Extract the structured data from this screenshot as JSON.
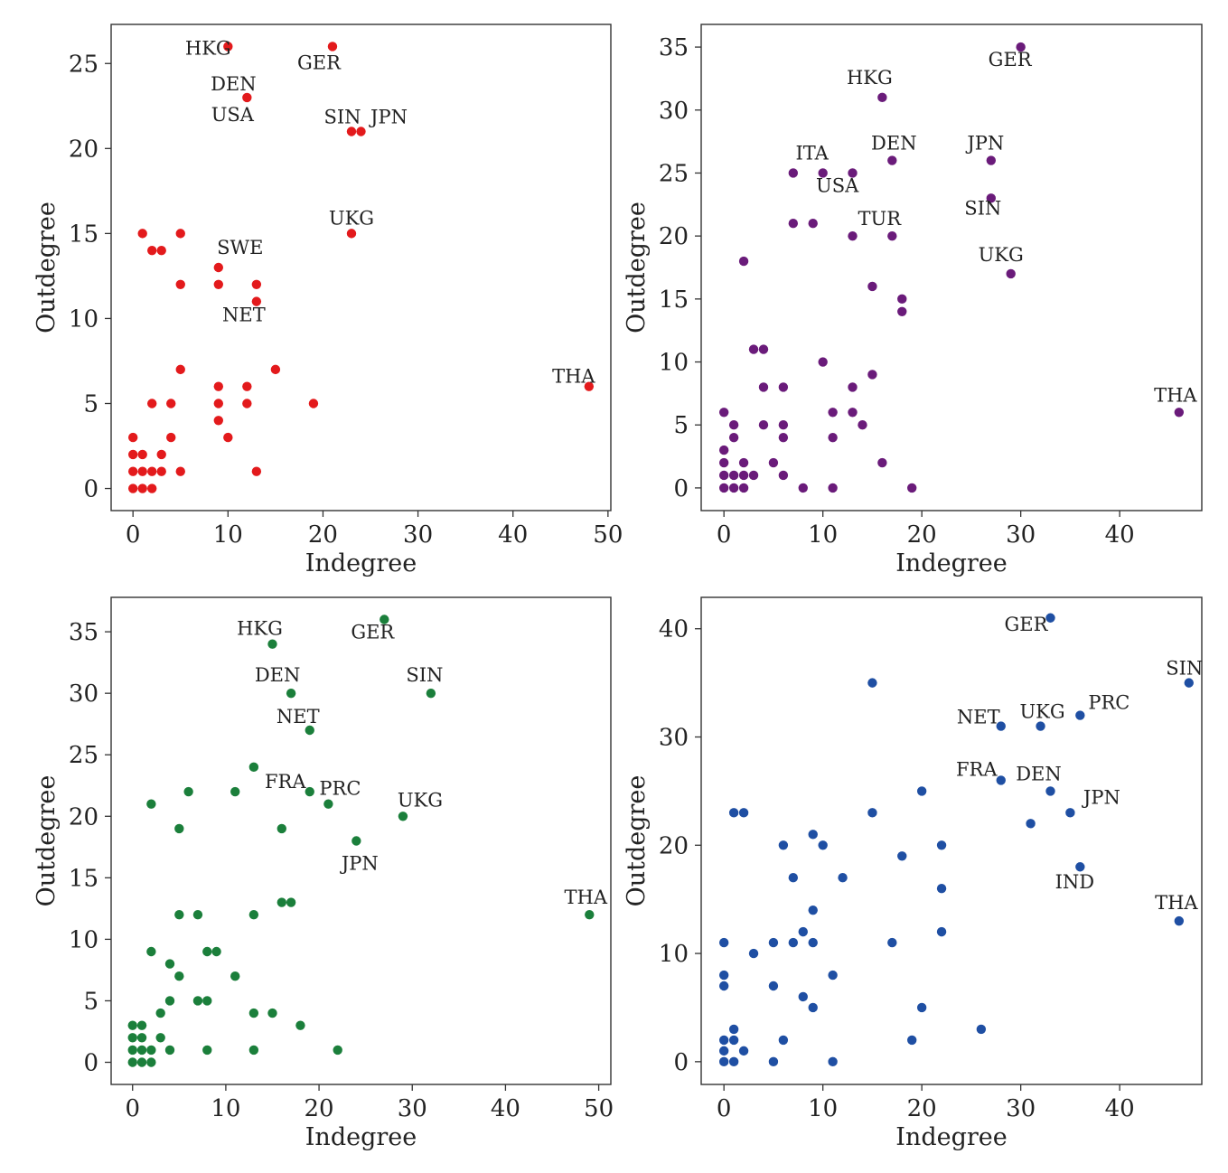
{
  "chart_data": [
    {
      "type": "scatter",
      "title": "",
      "xlabel": "Indegree",
      "ylabel": "Outdegree",
      "xlim": [
        -2.3,
        50.3
      ],
      "ylim": [
        -1.3,
        27.3
      ],
      "xticks": [
        0,
        10,
        20,
        30,
        40,
        50
      ],
      "yticks": [
        0,
        5,
        10,
        15,
        20,
        25
      ],
      "color": "#e31a1c",
      "grid": false,
      "points": [
        [
          10,
          26
        ],
        [
          21,
          26
        ],
        [
          12,
          23
        ],
        [
          23,
          21
        ],
        [
          24,
          21
        ],
        [
          23,
          15
        ],
        [
          1,
          15
        ],
        [
          2,
          14
        ],
        [
          3,
          14
        ],
        [
          5,
          15
        ],
        [
          5,
          12
        ],
        [
          9,
          13
        ],
        [
          9,
          12
        ],
        [
          13,
          12
        ],
        [
          13,
          11
        ],
        [
          5,
          7
        ],
        [
          15,
          7
        ],
        [
          9,
          6
        ],
        [
          12,
          6
        ],
        [
          48,
          6
        ],
        [
          2,
          5
        ],
        [
          4,
          5
        ],
        [
          9,
          5
        ],
        [
          12,
          5
        ],
        [
          19,
          5
        ],
        [
          9,
          4
        ],
        [
          4,
          3
        ],
        [
          10,
          3
        ],
        [
          0,
          3
        ],
        [
          0,
          2
        ],
        [
          1,
          2
        ],
        [
          3,
          2
        ],
        [
          0,
          1
        ],
        [
          1,
          1
        ],
        [
          2,
          1
        ],
        [
          3,
          1
        ],
        [
          5,
          1
        ],
        [
          13,
          1
        ],
        [
          0,
          0
        ],
        [
          1,
          0
        ],
        [
          2,
          0
        ]
      ],
      "labels": [
        {
          "text": "HKG",
          "x": 10,
          "y": 26
        },
        {
          "text": "GER",
          "x": 21,
          "y": 26
        },
        {
          "text": "DEN",
          "x": 12,
          "y": 23
        },
        {
          "text": "USA",
          "x": 12,
          "y": 23
        },
        {
          "text": "SIN",
          "x": 23,
          "y": 21
        },
        {
          "text": "JPN",
          "x": 24,
          "y": 21
        },
        {
          "text": "UKG",
          "x": 23,
          "y": 15
        },
        {
          "text": "SWE",
          "x": 9,
          "y": 13
        },
        {
          "text": "NET",
          "x": 13,
          "y": 11
        },
        {
          "text": "THA",
          "x": 48,
          "y": 6
        }
      ]
    },
    {
      "type": "scatter",
      "title": "",
      "xlabel": "Indegree",
      "ylabel": "Outdegree",
      "xlim": [
        -2.3,
        48.3
      ],
      "ylim": [
        -1.8,
        36.8
      ],
      "xticks": [
        0,
        10,
        20,
        30,
        40
      ],
      "yticks": [
        0,
        5,
        10,
        15,
        20,
        25,
        30,
        35
      ],
      "color": "#6a1b7a",
      "grid": false,
      "points": [
        [
          30,
          35
        ],
        [
          16,
          31
        ],
        [
          7,
          25
        ],
        [
          10,
          25
        ],
        [
          13,
          25
        ],
        [
          17,
          26
        ],
        [
          27,
          26
        ],
        [
          27,
          23
        ],
        [
          7,
          21
        ],
        [
          9,
          21
        ],
        [
          13,
          20
        ],
        [
          17,
          20
        ],
        [
          2,
          18
        ],
        [
          29,
          17
        ],
        [
          15,
          16
        ],
        [
          18,
          15
        ],
        [
          18,
          14
        ],
        [
          3,
          11
        ],
        [
          4,
          11
        ],
        [
          10,
          10
        ],
        [
          15,
          9
        ],
        [
          4,
          8
        ],
        [
          6,
          8
        ],
        [
          13,
          8
        ],
        [
          0,
          6
        ],
        [
          11,
          6
        ],
        [
          13,
          6
        ],
        [
          46,
          6
        ],
        [
          1,
          5
        ],
        [
          4,
          5
        ],
        [
          6,
          5
        ],
        [
          14,
          5
        ],
        [
          1,
          4
        ],
        [
          6,
          4
        ],
        [
          11,
          4
        ],
        [
          0,
          3
        ],
        [
          0,
          2
        ],
        [
          2,
          2
        ],
        [
          5,
          2
        ],
        [
          16,
          2
        ],
        [
          0,
          1
        ],
        [
          1,
          1
        ],
        [
          2,
          1
        ],
        [
          3,
          1
        ],
        [
          6,
          1
        ],
        [
          0,
          0
        ],
        [
          1,
          0
        ],
        [
          2,
          0
        ],
        [
          8,
          0
        ],
        [
          11,
          0
        ],
        [
          19,
          0
        ]
      ],
      "labels": [
        {
          "text": "GER",
          "x": 30,
          "y": 35
        },
        {
          "text": "HKG",
          "x": 16,
          "y": 31
        },
        {
          "text": "ITA",
          "x": 10,
          "y": 25
        },
        {
          "text": "USA",
          "x": 10,
          "y": 25
        },
        {
          "text": "DEN",
          "x": 17,
          "y": 26
        },
        {
          "text": "JPN",
          "x": 27,
          "y": 26
        },
        {
          "text": "SIN",
          "x": 27,
          "y": 23
        },
        {
          "text": "TUR",
          "x": 17,
          "y": 20
        },
        {
          "text": "UKG",
          "x": 29,
          "y": 17
        },
        {
          "text": "THA",
          "x": 46,
          "y": 6
        }
      ]
    },
    {
      "type": "scatter",
      "title": "",
      "xlabel": "Indegree",
      "ylabel": "Outdegree",
      "xlim": [
        -2.3,
        51.3
      ],
      "ylim": [
        -1.8,
        37.8
      ],
      "xticks": [
        0,
        10,
        20,
        30,
        40,
        50
      ],
      "yticks": [
        0,
        5,
        10,
        15,
        20,
        25,
        30,
        35
      ],
      "color": "#1b7f3b",
      "grid": false,
      "points": [
        [
          27,
          36
        ],
        [
          15,
          34
        ],
        [
          17,
          30
        ],
        [
          32,
          30
        ],
        [
          19,
          27
        ],
        [
          13,
          24
        ],
        [
          2,
          21
        ],
        [
          6,
          22
        ],
        [
          11,
          22
        ],
        [
          19,
          22
        ],
        [
          21,
          21
        ],
        [
          5,
          19
        ],
        [
          16,
          19
        ],
        [
          29,
          20
        ],
        [
          24,
          18
        ],
        [
          16,
          13
        ],
        [
          17,
          13
        ],
        [
          5,
          12
        ],
        [
          7,
          12
        ],
        [
          13,
          12
        ],
        [
          49,
          12
        ],
        [
          2,
          9
        ],
        [
          8,
          9
        ],
        [
          9,
          9
        ],
        [
          4,
          8
        ],
        [
          5,
          7
        ],
        [
          11,
          7
        ],
        [
          4,
          5
        ],
        [
          7,
          5
        ],
        [
          8,
          5
        ],
        [
          3,
          4
        ],
        [
          13,
          4
        ],
        [
          15,
          4
        ],
        [
          18,
          3
        ],
        [
          0,
          3
        ],
        [
          1,
          3
        ],
        [
          0,
          2
        ],
        [
          1,
          2
        ],
        [
          3,
          2
        ],
        [
          0,
          1
        ],
        [
          1,
          1
        ],
        [
          2,
          1
        ],
        [
          4,
          1
        ],
        [
          8,
          1
        ],
        [
          13,
          1
        ],
        [
          22,
          1
        ],
        [
          0,
          0
        ],
        [
          1,
          0
        ],
        [
          2,
          0
        ]
      ],
      "labels": [
        {
          "text": "HKG",
          "x": 15,
          "y": 34
        },
        {
          "text": "GER",
          "x": 27,
          "y": 36
        },
        {
          "text": "DEN",
          "x": 17,
          "y": 30
        },
        {
          "text": "SIN",
          "x": 32,
          "y": 30
        },
        {
          "text": "NET",
          "x": 19,
          "y": 27
        },
        {
          "text": "FRA",
          "x": 19,
          "y": 22
        },
        {
          "text": "PRC",
          "x": 21,
          "y": 21
        },
        {
          "text": "UKG",
          "x": 29,
          "y": 20
        },
        {
          "text": "JPN",
          "x": 24,
          "y": 18
        },
        {
          "text": "THA",
          "x": 49,
          "y": 12
        }
      ]
    },
    {
      "type": "scatter",
      "title": "",
      "xlabel": "Indegree",
      "ylabel": "Outdegree",
      "xlim": [
        -2.3,
        48.3
      ],
      "ylim": [
        -2.1,
        42.9
      ],
      "xticks": [
        0,
        10,
        20,
        30,
        40
      ],
      "yticks": [
        0,
        10,
        20,
        30,
        40
      ],
      "color": "#1f4fa3",
      "grid": false,
      "points": [
        [
          33,
          41
        ],
        [
          47,
          35
        ],
        [
          15,
          35
        ],
        [
          28,
          31
        ],
        [
          32,
          31
        ],
        [
          36,
          32
        ],
        [
          28,
          26
        ],
        [
          33,
          25
        ],
        [
          20,
          25
        ],
        [
          35,
          23
        ],
        [
          31,
          22
        ],
        [
          1,
          23
        ],
        [
          2,
          23
        ],
        [
          15,
          23
        ],
        [
          9,
          21
        ],
        [
          6,
          20
        ],
        [
          10,
          20
        ],
        [
          22,
          20
        ],
        [
          18,
          19
        ],
        [
          36,
          18
        ],
        [
          7,
          17
        ],
        [
          12,
          17
        ],
        [
          22,
          16
        ],
        [
          9,
          14
        ],
        [
          46,
          13
        ],
        [
          8,
          12
        ],
        [
          22,
          12
        ],
        [
          0,
          11
        ],
        [
          5,
          11
        ],
        [
          7,
          11
        ],
        [
          9,
          11
        ],
        [
          17,
          11
        ],
        [
          3,
          10
        ],
        [
          0,
          8
        ],
        [
          11,
          8
        ],
        [
          0,
          7
        ],
        [
          5,
          7
        ],
        [
          8,
          6
        ],
        [
          9,
          5
        ],
        [
          20,
          5
        ],
        [
          1,
          3
        ],
        [
          26,
          3
        ],
        [
          0,
          2
        ],
        [
          1,
          2
        ],
        [
          6,
          2
        ],
        [
          19,
          2
        ],
        [
          0,
          1
        ],
        [
          2,
          1
        ],
        [
          0,
          0
        ],
        [
          1,
          0
        ],
        [
          5,
          0
        ],
        [
          11,
          0
        ]
      ],
      "labels": [
        {
          "text": "GER",
          "x": 33,
          "y": 41
        },
        {
          "text": "SIN",
          "x": 47,
          "y": 35
        },
        {
          "text": "NET",
          "x": 28,
          "y": 31
        },
        {
          "text": "UKG",
          "x": 32,
          "y": 31
        },
        {
          "text": "PRC",
          "x": 36,
          "y": 32
        },
        {
          "text": "FRA",
          "x": 28,
          "y": 26
        },
        {
          "text": "DEN",
          "x": 33,
          "y": 25
        },
        {
          "text": "JPN",
          "x": 35,
          "y": 23
        },
        {
          "text": "IND",
          "x": 36,
          "y": 18
        },
        {
          "text": "THA",
          "x": 46,
          "y": 13
        }
      ]
    }
  ]
}
